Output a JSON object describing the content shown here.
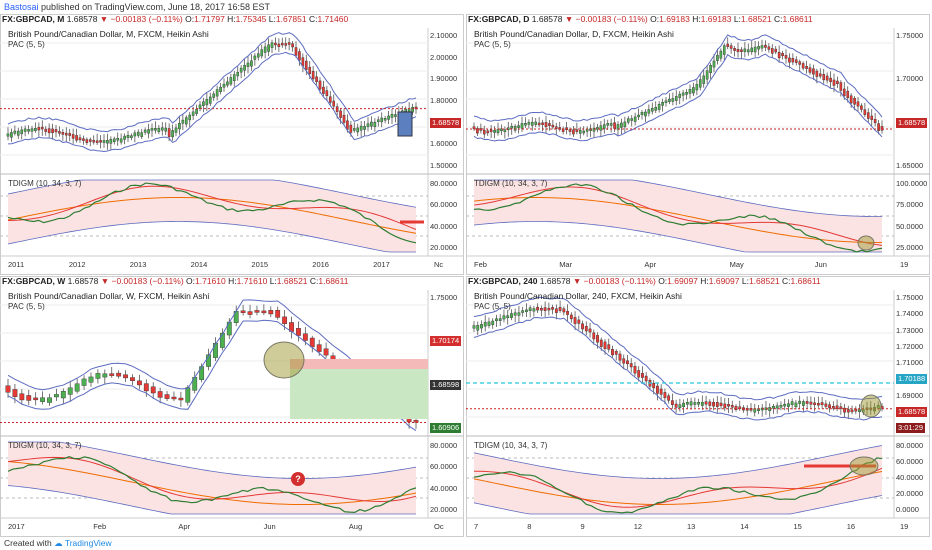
{
  "publication": {
    "author": "Bastosai",
    "text": "published on TradingView.com, June 18, 2017 16:58 EST"
  },
  "footer": {
    "created_with": "Created with",
    "logo": "TradingView"
  },
  "colors": {
    "bull": "#4caf50",
    "bear": "#e53935",
    "pac": "#5c6bc0",
    "price_line": "#c62828",
    "tdi_green": "#2e7d32",
    "tdi_red": "#e53935",
    "tdi_orange": "#ef6c00",
    "tdi_band": "#5c6bc0",
    "highlight": "#a29a33"
  },
  "panels": [
    {
      "symbol": "FX:GBPCAD, M",
      "last": "1.68578",
      "chg": "▼ −0.00183 (−0.11%)",
      "O": "1.71797",
      "H": "1.75345",
      "L": "1.67851",
      "C": "1.71460",
      "title": "British Pound/Canadian Dollar, M, FXCM, Heikin Ashi",
      "pac": "PAC (5, 5)",
      "ind": "TDIGM (10, 34, 3, 7)",
      "price_axis": [
        "2.10000",
        "2.00000",
        "1.90000",
        "1.80000",
        "1.68578",
        "1.60000",
        "1.50000"
      ],
      "ind_axis": [
        "80.0000",
        "60.0000",
        "40.0000",
        "20.0000"
      ],
      "time_axis": [
        "2011",
        "2012",
        "2013",
        "2014",
        "2015",
        "2016",
        "2017",
        "Nc"
      ]
    },
    {
      "symbol": "FX:GBPCAD, D",
      "last": "1.68578",
      "chg": "▼ −0.00183 (−0.11%)",
      "O": "1.69183",
      "H": "1.69183",
      "L": "1.68521",
      "C": "1.68611",
      "title": "British Pound/Canadian Dollar, D, FXCM, Heikin Ashi",
      "pac": "PAC (5, 5)",
      "ind": "TDIGM (10, 34, 3, 7)",
      "price_axis": [
        "1.75000",
        "1.70000",
        "1.68578",
        "1.65000"
      ],
      "ind_axis": [
        "100.0000",
        "75.0000",
        "50.0000",
        "25.0000"
      ],
      "time_axis": [
        "Feb",
        "Mar",
        "Apr",
        "May",
        "Jun",
        "19"
      ]
    },
    {
      "symbol": "FX:GBPCAD, W",
      "last": "1.68578",
      "chg": "▼ −0.00183 (−0.11%)",
      "O": "1.71610",
      "H": "1.71610",
      "L": "1.68521",
      "C": "1.68611",
      "title": "British Pound/Canadian Dollar, W, FXCM, Heikin Ashi",
      "pac": "PAC (5, 5)",
      "ind": "TDIGM (10, 34, 3, 7)",
      "price_axis": [
        "1.75000",
        "1.70174",
        "1.68598",
        "1.60906"
      ],
      "ind_axis": [
        "80.0000",
        "60.0000",
        "40.0000",
        "20.0000"
      ],
      "time_axis": [
        "2017",
        "Feb",
        "Apr",
        "Jun",
        "Aug",
        "Oc"
      ]
    },
    {
      "symbol": "FX:GBPCAD, 240",
      "last": "1.68578",
      "chg": "▼ −0.00183 (−0.11%)",
      "O": "1.69097",
      "H": "1.69097",
      "L": "1.68521",
      "C": "1.68611",
      "title": "British Pound/Canadian Dollar, 240, FXCM, Heikin Ashi",
      "pac": "PAC (5, 5)",
      "ind": "TDIGM (10, 34, 3, 7)",
      "price_axis": [
        "1.75000",
        "1.74000",
        "1.73000",
        "1.72000",
        "1.71000",
        "1.70188",
        "1.69000",
        "1.68578",
        "3:01:29"
      ],
      "ind_axis": [
        "80.0000",
        "60.0000",
        "40.0000",
        "20.0000",
        "0.0000"
      ],
      "time_axis": [
        "7",
        "8",
        "9",
        "12",
        "13",
        "14",
        "15",
        "16",
        "19"
      ]
    }
  ]
}
